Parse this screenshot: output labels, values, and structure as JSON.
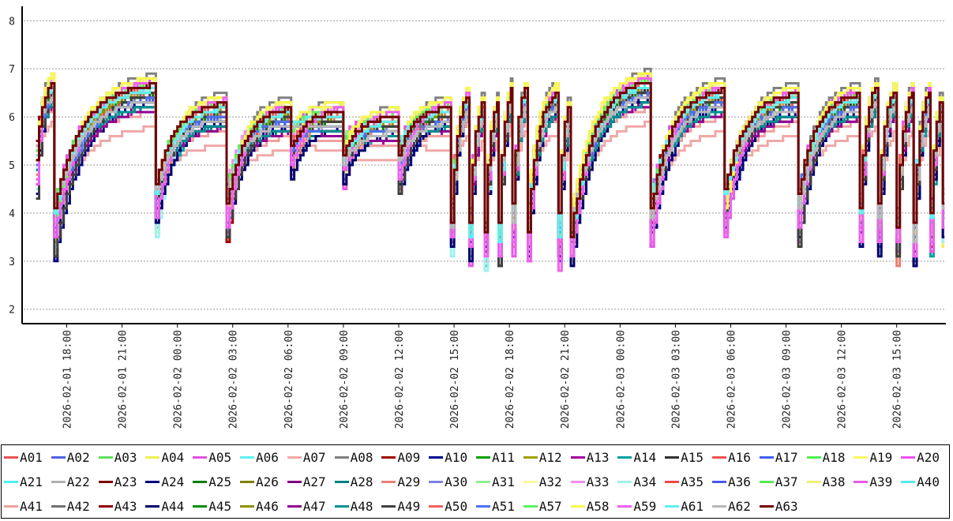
{
  "chart_data": {
    "type": "line",
    "step": true,
    "title": "",
    "xlabel": "",
    "ylabel": "",
    "y_ticks": [
      "2",
      "3",
      "4",
      "5",
      "6",
      "7",
      "8"
    ],
    "ylim": [
      1.7,
      8.3
    ],
    "x_ticks": [
      "2026-02-01 18:00",
      "2026-02-01 21:00",
      "2026-02-02 00:00",
      "2026-02-02 03:00",
      "2026-02-02 06:00",
      "2026-02-02 09:00",
      "2026-02-02 12:00",
      "2026-02-02 15:00",
      "2026-02-02 18:00",
      "2026-02-02 21:00",
      "2026-02-03 00:00",
      "2026-02-03 03:00",
      "2026-02-03 06:00",
      "2026-02-03 09:00",
      "2026-02-03 12:00",
      "2026-02-03 15:00"
    ],
    "xlim": [
      "2026-02-01 15:40",
      "2026-02-03 17:40"
    ],
    "grid": "horizontal dashed",
    "legend_position": "bottom",
    "cycle_starts": [
      "2026-02-01 16:20",
      "2026-02-01 17:20",
      "2026-02-01 22:50",
      "2026-02-02 02:40",
      "2026-02-02 06:10",
      "2026-02-02 09:00",
      "2026-02-02 12:00",
      "2026-02-02 14:50",
      "2026-02-02 15:50",
      "2026-02-02 16:40",
      "2026-02-02 17:25",
      "2026-02-02 18:10",
      "2026-02-02 19:00",
      "2026-02-02 20:40",
      "2026-02-02 21:20",
      "2026-02-03 01:40",
      "2026-02-03 05:40",
      "2026-02-03 09:40",
      "2026-02-03 13:00",
      "2026-02-03 14:00",
      "2026-02-03 15:00",
      "2026-02-03 15:55",
      "2026-02-03 16:50",
      "2026-02-03 17:30"
    ],
    "cycle_lows": [
      5.5,
      4.2,
      4.7,
      4.6,
      5.9,
      5.6,
      5.5,
      4.3,
      4.1,
      3.9,
      4.0,
      4.2,
      4.2,
      4.0,
      4.0,
      4.4,
      4.6,
      4.5,
      4.4,
      4.3,
      4.1,
      4.0,
      4.3,
      4.5
    ],
    "cycle_highs": [
      6.9,
      6.8,
      6.4,
      6.3,
      6.2,
      6.1,
      6.3,
      6.7,
      6.6,
      6.6,
      6.9,
      6.9,
      6.7,
      6.6,
      6.9,
      6.7,
      6.6,
      6.6,
      6.9,
      6.8,
      6.8,
      6.8,
      6.7,
      6.6
    ],
    "series": [
      {
        "name": "A01",
        "color": "#e8554e",
        "offset": 0.0
      },
      {
        "name": "A02",
        "color": "#5060e0",
        "offset": -0.1
      },
      {
        "name": "A03",
        "color": "#60e060",
        "offset": 0.2
      },
      {
        "name": "A04",
        "color": "#f0f050",
        "offset": 0.3
      },
      {
        "name": "A05",
        "color": "#e050e0",
        "offset": 0.25
      },
      {
        "name": "A06",
        "color": "#60f0f0",
        "offset": 0.15
      },
      {
        "name": "A07",
        "color": "#f0a8a8",
        "offset": -0.6
      },
      {
        "name": "A08",
        "color": "#808080",
        "offset": 0.35
      },
      {
        "name": "A09",
        "color": "#a00000",
        "offset": 0.1
      },
      {
        "name": "A10",
        "color": "#000090",
        "offset": -0.15
      },
      {
        "name": "A11",
        "color": "#00a000",
        "offset": -0.05
      },
      {
        "name": "A12",
        "color": "#a0a000",
        "offset": 0.05
      },
      {
        "name": "A13",
        "color": "#a000a0",
        "offset": -0.3
      },
      {
        "name": "A14",
        "color": "#00a0a0",
        "offset": -0.2
      },
      {
        "name": "A15",
        "color": "#303030",
        "offset": 0.0
      },
      {
        "name": "A16",
        "color": "#f05050",
        "offset": 0.12
      },
      {
        "name": "A17",
        "color": "#4060f0",
        "offset": -0.08
      },
      {
        "name": "A18",
        "color": "#50f050",
        "offset": 0.18
      },
      {
        "name": "A19",
        "color": "#f8f860",
        "offset": 0.28
      },
      {
        "name": "A20",
        "color": "#f050f0",
        "offset": 0.22
      },
      {
        "name": "A21",
        "color": "#50f0f0",
        "offset": 0.08
      },
      {
        "name": "A22",
        "color": "#b0b0b0",
        "offset": -0.12
      },
      {
        "name": "A23",
        "color": "#800000",
        "offset": 0.16
      },
      {
        "name": "A24",
        "color": "#000080",
        "offset": -0.18
      },
      {
        "name": "A25",
        "color": "#008000",
        "offset": -0.02
      },
      {
        "name": "A26",
        "color": "#808000",
        "offset": 0.04
      },
      {
        "name": "A27",
        "color": "#800080",
        "offset": -0.22
      },
      {
        "name": "A28",
        "color": "#008080",
        "offset": -0.25
      },
      {
        "name": "A29",
        "color": "#e88070",
        "offset": 0.06
      },
      {
        "name": "A30",
        "color": "#8080e0",
        "offset": -0.06
      },
      {
        "name": "A31",
        "color": "#90f090",
        "offset": 0.14
      },
      {
        "name": "A32",
        "color": "#f8f8a0",
        "offset": 0.24
      },
      {
        "name": "A33",
        "color": "#f090f0",
        "offset": 0.2
      },
      {
        "name": "A34",
        "color": "#a0f0f0",
        "offset": 0.1
      },
      {
        "name": "A35",
        "color": "#f04848",
        "offset": -0.03
      },
      {
        "name": "A36",
        "color": "#4858f0",
        "offset": -0.11
      },
      {
        "name": "A37",
        "color": "#58e858",
        "offset": 0.17
      },
      {
        "name": "A38",
        "color": "#f0f070",
        "offset": 0.26
      },
      {
        "name": "A39",
        "color": "#e858e8",
        "offset": 0.21
      },
      {
        "name": "A40",
        "color": "#58e8e8",
        "offset": 0.09
      },
      {
        "name": "A41",
        "color": "#f0a0a0",
        "offset": -0.35
      },
      {
        "name": "A42",
        "color": "#707070",
        "offset": 0.02
      },
      {
        "name": "A43",
        "color": "#900000",
        "offset": 0.13
      },
      {
        "name": "A44",
        "color": "#000070",
        "offset": -0.16
      },
      {
        "name": "A45",
        "color": "#009000",
        "offset": -0.04
      },
      {
        "name": "A46",
        "color": "#909000",
        "offset": 0.03
      },
      {
        "name": "A47",
        "color": "#900090",
        "offset": -0.28
      },
      {
        "name": "A48",
        "color": "#009090",
        "offset": -0.23
      },
      {
        "name": "A49",
        "color": "#404040",
        "offset": 0.01
      },
      {
        "name": "A50",
        "color": "#f06060",
        "offset": 0.11
      },
      {
        "name": "A51",
        "color": "#5070f0",
        "offset": -0.09
      },
      {
        "name": "A57",
        "color": "#60f060",
        "offset": 0.19
      },
      {
        "name": "A58",
        "color": "#f8f850",
        "offset": 0.29
      },
      {
        "name": "A59",
        "color": "#f060f0",
        "offset": 0.23
      },
      {
        "name": "A61",
        "color": "#60f0f0",
        "offset": 0.07
      },
      {
        "name": "A62",
        "color": "#b8b8b8",
        "offset": -0.13
      },
      {
        "name": "A63",
        "color": "#700000",
        "offset": 0.15
      }
    ]
  }
}
